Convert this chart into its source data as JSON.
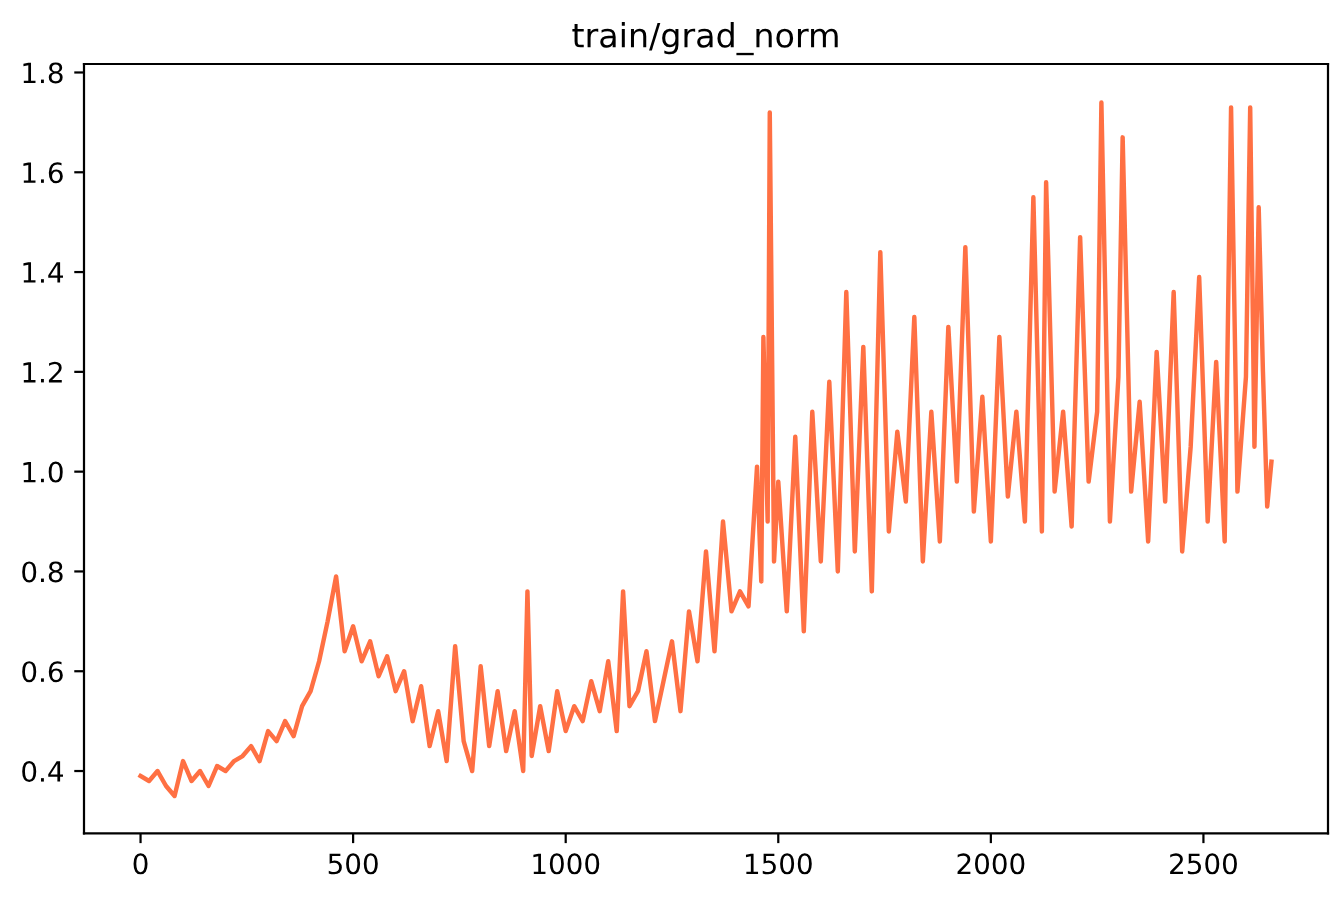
{
  "chart_data": {
    "type": "line",
    "title": "train/grad_norm",
    "xlim": [
      -133,
      2793
    ],
    "ylim": [
      0.275,
      1.817
    ],
    "xticks": [
      0,
      500,
      1000,
      1500,
      2000,
      2500
    ],
    "yticks": [
      {
        "value": 0.4,
        "label": "0.4"
      },
      {
        "value": 0.6,
        "label": "0.6"
      },
      {
        "value": 0.8,
        "label": "0.8"
      },
      {
        "value": 1.0,
        "label": "1.0"
      },
      {
        "value": 1.2,
        "label": "1.2"
      },
      {
        "value": 1.4,
        "label": "1.4"
      },
      {
        "value": 1.6,
        "label": "1.6"
      },
      {
        "value": 1.8,
        "label": "1.8"
      }
    ],
    "grid": false,
    "legend": false,
    "marker": "none",
    "line_style": "solid",
    "series": [
      {
        "color": "#ff7043",
        "x": [
          0,
          20,
          40,
          60,
          80,
          100,
          120,
          140,
          160,
          180,
          200,
          220,
          240,
          260,
          280,
          300,
          320,
          340,
          360,
          380,
          400,
          420,
          440,
          460,
          480,
          500,
          520,
          540,
          560,
          580,
          600,
          620,
          640,
          660,
          680,
          700,
          720,
          740,
          760,
          780,
          800,
          820,
          840,
          860,
          880,
          900,
          910,
          920,
          940,
          960,
          980,
          1000,
          1020,
          1040,
          1060,
          1080,
          1100,
          1120,
          1135,
          1150,
          1170,
          1190,
          1210,
          1230,
          1250,
          1270,
          1290,
          1310,
          1330,
          1350,
          1370,
          1390,
          1410,
          1430,
          1450,
          1460,
          1465,
          1475,
          1480,
          1490,
          1500,
          1520,
          1540,
          1560,
          1580,
          1600,
          1620,
          1640,
          1660,
          1680,
          1700,
          1720,
          1740,
          1760,
          1780,
          1800,
          1820,
          1840,
          1860,
          1880,
          1900,
          1920,
          1940,
          1960,
          1980,
          2000,
          2020,
          2040,
          2060,
          2080,
          2100,
          2120,
          2130,
          2150,
          2170,
          2190,
          2210,
          2230,
          2250,
          2260,
          2280,
          2300,
          2310,
          2330,
          2350,
          2370,
          2390,
          2410,
          2430,
          2450,
          2470,
          2490,
          2510,
          2530,
          2550,
          2565,
          2580,
          2600,
          2610,
          2620,
          2630,
          2640,
          2650,
          2660
        ],
        "values": [
          0.39,
          0.38,
          0.4,
          0.37,
          0.35,
          0.42,
          0.38,
          0.4,
          0.37,
          0.41,
          0.4,
          0.42,
          0.43,
          0.45,
          0.42,
          0.48,
          0.46,
          0.5,
          0.47,
          0.53,
          0.56,
          0.62,
          0.7,
          0.79,
          0.64,
          0.69,
          0.62,
          0.66,
          0.59,
          0.63,
          0.56,
          0.6,
          0.5,
          0.57,
          0.45,
          0.52,
          0.42,
          0.65,
          0.46,
          0.4,
          0.61,
          0.45,
          0.56,
          0.44,
          0.52,
          0.4,
          0.76,
          0.43,
          0.53,
          0.44,
          0.56,
          0.48,
          0.53,
          0.5,
          0.58,
          0.52,
          0.62,
          0.48,
          0.76,
          0.53,
          0.56,
          0.64,
          0.5,
          0.58,
          0.66,
          0.52,
          0.72,
          0.62,
          0.84,
          0.64,
          0.9,
          0.72,
          0.76,
          0.73,
          1.01,
          0.78,
          1.27,
          0.9,
          1.72,
          0.82,
          0.98,
          0.72,
          1.07,
          0.68,
          1.12,
          0.82,
          1.18,
          0.8,
          1.36,
          0.84,
          1.25,
          0.76,
          1.44,
          0.88,
          1.08,
          0.94,
          1.31,
          0.82,
          1.12,
          0.86,
          1.29,
          0.98,
          1.45,
          0.92,
          1.15,
          0.86,
          1.27,
          0.95,
          1.12,
          0.9,
          1.55,
          0.88,
          1.58,
          0.96,
          1.12,
          0.89,
          1.47,
          0.98,
          1.12,
          1.74,
          0.9,
          1.19,
          1.67,
          0.96,
          1.14,
          0.86,
          1.24,
          0.94,
          1.36,
          0.84,
          1.05,
          1.39,
          0.9,
          1.22,
          0.86,
          1.73,
          0.96,
          1.19,
          1.73,
          1.05,
          1.53,
          1.2,
          0.93,
          1.02
        ]
      }
    ]
  }
}
